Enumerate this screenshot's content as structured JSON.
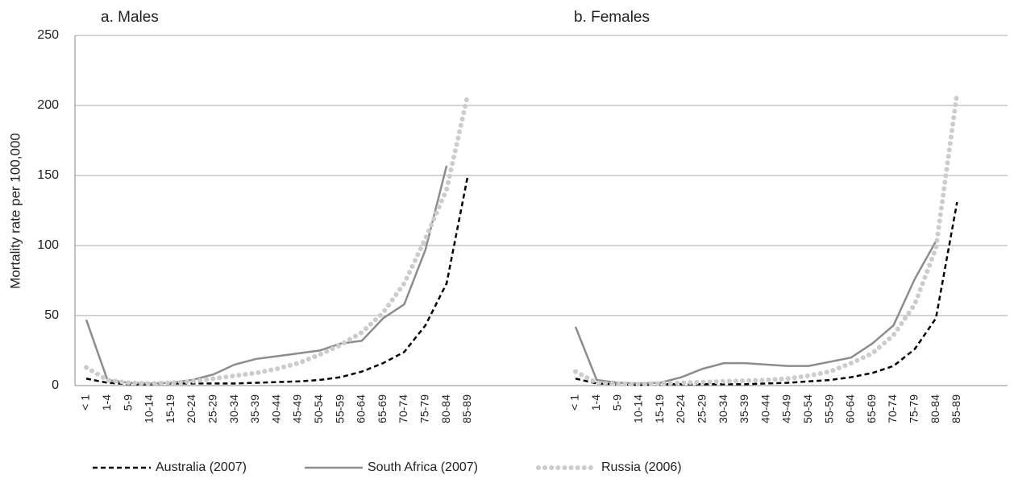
{
  "chart_data": {
    "type": "line",
    "ylabel": "Mortality rate per 100,000",
    "ylim": [
      0,
      250
    ],
    "yticks": [
      0,
      50,
      100,
      150,
      200,
      250
    ],
    "grid": true,
    "panels": [
      {
        "title": "a. Males",
        "categories": [
          "< 1",
          "1-4",
          "5-9",
          "10-14",
          "15-19",
          "20-24",
          "25-29",
          "30-34",
          "35-39",
          "40-44",
          "45-49",
          "50-54",
          "55-59",
          "60-64",
          "65-69",
          "70-74",
          "75-79",
          "80-84",
          "85-89"
        ]
      },
      {
        "title": "b. Females",
        "categories": [
          "< 1",
          "1-4",
          "5-9",
          "10-14",
          "15-19",
          "20-24",
          "25-29",
          "30-34",
          "35-39",
          "40-44",
          "45-49",
          "50-54",
          "55-59",
          "60-64",
          "65-69",
          "70-74",
          "75-79",
          "80-84",
          "85-89"
        ]
      }
    ],
    "series": [
      {
        "name": "Australia (2007)",
        "color": "#000000",
        "style": "dashed",
        "values": [
          [
            5,
            2,
            1,
            1,
            1.5,
            1.5,
            1.5,
            1.5,
            2,
            2.5,
            3,
            4,
            6,
            10,
            16,
            24,
            43,
            73,
            150
          ],
          [
            5,
            1.5,
            1,
            0.5,
            1,
            1,
            1,
            1,
            1,
            1.5,
            2,
            3,
            4,
            6,
            9,
            14,
            26,
            48,
            131
          ]
        ]
      },
      {
        "name": "South Africa (2007)",
        "color": "#8c8c8c",
        "style": "solid",
        "values": [
          [
            47,
            4,
            2,
            1.5,
            2,
            4,
            8,
            15,
            19,
            21,
            23,
            25,
            30,
            32,
            48,
            58,
            97,
            157,
            null
          ],
          [
            42,
            4,
            2,
            1.5,
            2,
            6,
            12,
            16,
            16,
            15,
            14,
            14,
            17,
            20,
            30,
            43,
            76,
            103,
            null
          ]
        ]
      },
      {
        "name": "Russia (2006)",
        "color": "#cccccc",
        "style": "dotted",
        "values": [
          [
            13,
            4,
            2,
            1.5,
            2,
            3,
            5,
            7,
            9,
            12,
            16,
            22,
            29,
            38,
            52,
            73,
            105,
            140,
            208
          ],
          [
            10,
            2,
            1,
            1,
            1.5,
            2,
            2.5,
            3,
            3.5,
            4,
            5,
            7,
            10,
            16,
            23,
            36,
            58,
            98,
            209
          ]
        ]
      }
    ]
  }
}
